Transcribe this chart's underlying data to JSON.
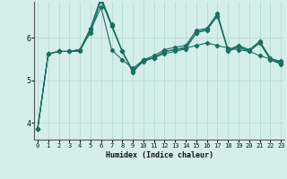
{
  "xlabel": "Humidex (Indice chaleur)",
  "bg_color": "#d4eeea",
  "grid_color": "#b8ddd8",
  "line_color": "#1a6e62",
  "x_ticks": [
    0,
    1,
    2,
    3,
    4,
    5,
    6,
    7,
    8,
    9,
    10,
    11,
    12,
    13,
    14,
    15,
    16,
    17,
    18,
    19,
    20,
    21,
    22,
    23
  ],
  "y_ticks": [
    4,
    5,
    6
  ],
  "ylim": [
    3.6,
    6.85
  ],
  "xlim": [
    -0.3,
    23.3
  ],
  "series": [
    [
      3.85,
      5.62,
      5.68,
      5.68,
      5.68,
      6.18,
      6.72,
      5.72,
      5.48,
      5.28,
      5.48,
      5.53,
      5.68,
      5.72,
      5.76,
      5.82,
      5.88,
      5.82,
      5.76,
      5.72,
      5.68,
      5.58,
      5.5,
      5.45
    ],
    [
      3.85,
      5.62,
      5.68,
      5.68,
      5.72,
      6.22,
      6.95,
      6.32,
      5.68,
      5.22,
      5.48,
      5.58,
      5.72,
      5.78,
      5.82,
      6.18,
      6.22,
      6.52,
      5.72,
      5.82,
      5.72,
      5.92,
      5.52,
      5.42
    ],
    [
      3.85,
      5.62,
      5.68,
      5.68,
      5.72,
      6.12,
      6.88,
      6.28,
      5.68,
      5.18,
      5.48,
      5.53,
      5.68,
      5.72,
      5.78,
      6.12,
      6.18,
      6.52,
      5.68,
      5.78,
      5.68,
      5.88,
      5.48,
      5.38
    ],
    [
      3.85,
      5.62,
      5.68,
      5.68,
      5.72,
      6.22,
      6.95,
      6.28,
      5.68,
      5.22,
      5.44,
      5.53,
      5.63,
      5.68,
      5.74,
      6.12,
      6.22,
      6.58,
      5.7,
      5.8,
      5.7,
      5.9,
      5.5,
      5.4
    ]
  ]
}
